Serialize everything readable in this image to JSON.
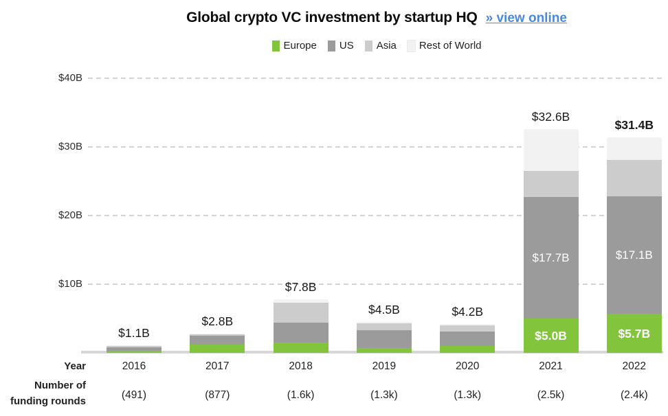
{
  "title": "Global crypto VC investment by startup HQ",
  "link": {
    "label": "» view online"
  },
  "colors": {
    "europe": "#82c43c",
    "us": "#9b9b9b",
    "asia": "#cccccc",
    "rest_of_world": "#f2f2f2",
    "link_blue": "#4a89dc",
    "gridline": "#d4d4d4"
  },
  "legend": [
    {
      "label": "Europe",
      "color": "#82c43c"
    },
    {
      "label": "US",
      "color": "#9b9b9b"
    },
    {
      "label": "Asia",
      "color": "#cccccc"
    },
    {
      "label": "Rest of World",
      "color": "#f2f2f2"
    }
  ],
  "axis": {
    "ticks": [
      "$40B",
      "$30B",
      "$20B",
      "$10B"
    ],
    "tick_values": [
      40,
      30,
      20,
      10
    ]
  },
  "rows": {
    "year_label": "Year",
    "rounds_label": "Number of funding rounds"
  },
  "chart_data": {
    "type": "bar",
    "stacked": true,
    "title": "Global crypto VC investment by startup HQ",
    "ylim": [
      0,
      40
    ],
    "grid": "dashed-horizontal",
    "legend_position": "top-center",
    "categories": [
      "2016",
      "2017",
      "2018",
      "2019",
      "2020",
      "2021",
      "2022"
    ],
    "funding_rounds": [
      "(491)",
      "(877)",
      "(1.6k)",
      "(1.3k)",
      "(1.3k)",
      "(2.5k)",
      "(2.4k)"
    ],
    "totals": [
      1.1,
      2.8,
      7.8,
      4.5,
      4.2,
      32.6,
      31.4
    ],
    "totals_label": [
      "$1.1B",
      "$2.8B",
      "$7.8B",
      "$4.5B",
      "$4.2B",
      "$32.6B",
      "$31.4B"
    ],
    "total_label_bold": [
      false,
      false,
      false,
      false,
      false,
      false,
      true
    ],
    "series": [
      {
        "name": "Europe",
        "color": "#82c43c",
        "values": [
          0.3,
          1.2,
          1.5,
          0.7,
          1.0,
          5.0,
          5.7
        ]
      },
      {
        "name": "US",
        "color": "#9b9b9b",
        "values": [
          0.5,
          1.3,
          2.9,
          2.6,
          2.1,
          17.7,
          17.1
        ]
      },
      {
        "name": "Asia",
        "color": "#cccccc",
        "values": [
          0.2,
          0.2,
          2.9,
          1.0,
          0.9,
          3.8,
          5.3
        ]
      },
      {
        "name": "Rest of World",
        "color": "#f2f2f2",
        "values": [
          0.1,
          0.1,
          0.5,
          0.2,
          0.2,
          6.1,
          3.3
        ]
      }
    ],
    "inside_labels": [
      {
        "category": "2021",
        "series": "US",
        "text": "$17.7B",
        "bold": false
      },
      {
        "category": "2021",
        "series": "Europe",
        "text": "$5.0B",
        "bold": true
      },
      {
        "category": "2022",
        "series": "US",
        "text": "$17.1B",
        "bold": false
      },
      {
        "category": "2022",
        "series": "Europe",
        "text": "$5.7B",
        "bold": true
      }
    ]
  }
}
